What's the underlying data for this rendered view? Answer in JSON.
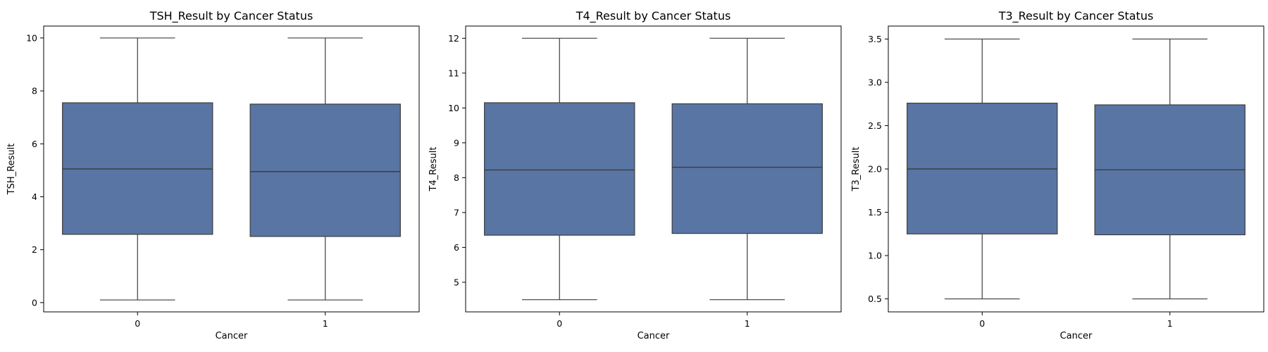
{
  "chart_data": [
    {
      "type": "box",
      "title": "TSH_Result by Cancer Status",
      "xlabel": "Cancer",
      "ylabel": "TSH_Result",
      "categories": [
        "0",
        "1"
      ],
      "ylim": [
        -0.35,
        10.45
      ],
      "yticks": [
        0,
        2,
        4,
        6,
        8,
        10
      ],
      "ytick_labels": [
        "0",
        "2",
        "4",
        "6",
        "8",
        "10"
      ],
      "boxes": [
        {
          "category": "0",
          "min": 0.1,
          "q1": 2.58,
          "median": 5.05,
          "q3": 7.55,
          "max": 10.0
        },
        {
          "category": "1",
          "min": 0.1,
          "q1": 2.5,
          "median": 4.95,
          "q3": 7.5,
          "max": 10.0
        }
      ]
    },
    {
      "type": "box",
      "title": "T4_Result by Cancer Status",
      "xlabel": "Cancer",
      "ylabel": "T4_Result",
      "categories": [
        "0",
        "1"
      ],
      "ylim": [
        4.15,
        12.35
      ],
      "yticks": [
        5,
        6,
        7,
        8,
        9,
        10,
        11,
        12
      ],
      "ytick_labels": [
        "5",
        "6",
        "7",
        "8",
        "9",
        "10",
        "11",
        "12"
      ],
      "boxes": [
        {
          "category": "0",
          "min": 4.5,
          "q1": 6.35,
          "median": 8.22,
          "q3": 10.15,
          "max": 12.0
        },
        {
          "category": "1",
          "min": 4.5,
          "q1": 6.4,
          "median": 8.3,
          "q3": 10.12,
          "max": 12.0
        }
      ]
    },
    {
      "type": "box",
      "title": "T3_Result by Cancer Status",
      "xlabel": "Cancer",
      "ylabel": "T3_Result",
      "categories": [
        "0",
        "1"
      ],
      "ylim": [
        0.35,
        3.65
      ],
      "yticks": [
        0.5,
        1.0,
        1.5,
        2.0,
        2.5,
        3.0,
        3.5
      ],
      "ytick_labels": [
        "0.5",
        "1.0",
        "1.5",
        "2.0",
        "2.5",
        "3.0",
        "3.5"
      ],
      "boxes": [
        {
          "category": "0",
          "min": 0.5,
          "q1": 1.25,
          "median": 2.0,
          "q3": 2.76,
          "max": 3.5
        },
        {
          "category": "1",
          "min": 0.5,
          "q1": 1.24,
          "median": 1.99,
          "q3": 2.74,
          "max": 3.5
        }
      ]
    }
  ],
  "colors": {
    "box_fill": "#5875a4",
    "box_edge": "#3d3d3d",
    "axes": "#000000",
    "background": "#ffffff"
  }
}
